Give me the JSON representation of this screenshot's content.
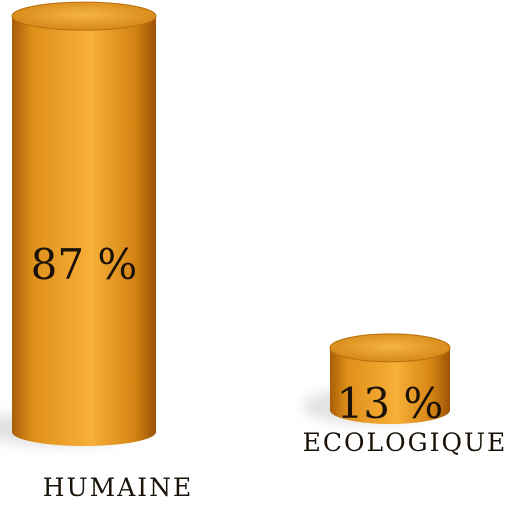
{
  "chart_data": {
    "type": "bar",
    "style": "3d-cylinder",
    "categories": [
      "HUMAINE",
      "ECOLOGIQUE"
    ],
    "values": [
      87,
      13
    ],
    "value_labels": [
      "87 %",
      "13 %"
    ],
    "unit": "%",
    "ylim": [
      0,
      100
    ],
    "grid": false,
    "legend": "none",
    "title": "",
    "xlabel": "",
    "ylabel": ""
  },
  "colors": {
    "bar_main": "#f0a020",
    "bar_dark": "#b86a0a",
    "bar_light": "#ffd070",
    "text": "#1a1208"
  }
}
